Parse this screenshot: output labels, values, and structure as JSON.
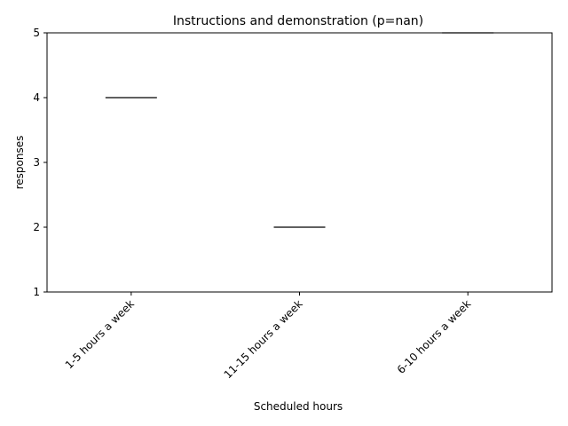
{
  "chart_data": {
    "type": "box",
    "title": "Instructions and demonstration (p=nan)",
    "xlabel": "Scheduled hours",
    "ylabel": "responses",
    "categories": [
      "1-5 hours a week",
      "11-15 hours a week",
      "6-10 hours a week"
    ],
    "values": [
      4,
      2,
      5
    ],
    "ylim": [
      1,
      5
    ],
    "yticks": [
      "1",
      "2",
      "3",
      "4",
      "5"
    ],
    "grid": false,
    "line_color": "#000000"
  }
}
